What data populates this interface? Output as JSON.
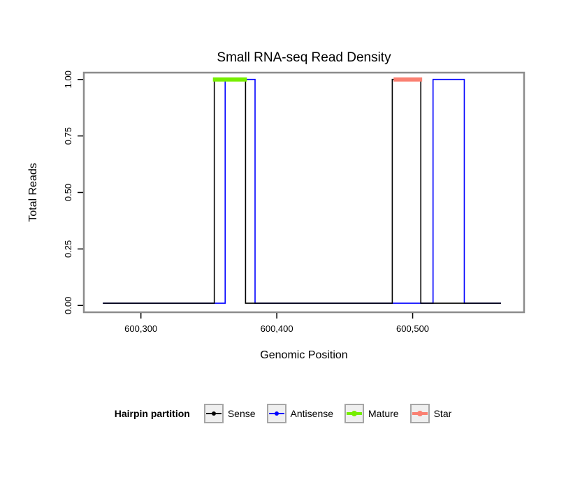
{
  "page": {
    "background": "#ffffff"
  },
  "chart_data": {
    "type": "line",
    "title": "Small RNA-seq Read Density",
    "xlabel": "Genomic Position",
    "ylabel": "Total Reads",
    "xlim": [
      600258,
      600582
    ],
    "ylim": [
      -0.03,
      1.03
    ],
    "grid": false,
    "panel_border_color": "#8c8c8c",
    "panel_background": "#ffffff",
    "xticks": [
      {
        "value": 600300,
        "label": "600,300"
      },
      {
        "value": 600400,
        "label": "600,400"
      },
      {
        "value": 600500,
        "label": "600,500"
      }
    ],
    "yticks": [
      {
        "value": 0.0,
        "label": "0.00"
      },
      {
        "value": 0.25,
        "label": "0.25"
      },
      {
        "value": 0.5,
        "label": "0.50"
      },
      {
        "value": 0.75,
        "label": "0.75"
      },
      {
        "value": 1.0,
        "label": "1.00"
      }
    ],
    "series": [
      {
        "name": "Antisense",
        "color": "#0000ff",
        "line_width": 1.6,
        "points": [
          [
            600272,
            0.01
          ],
          [
            600362,
            0.01
          ],
          [
            600362,
            1.0
          ],
          [
            600384,
            1.0
          ],
          [
            600384,
            0.01
          ],
          [
            600515,
            0.01
          ],
          [
            600515,
            1.0
          ],
          [
            600538,
            1.0
          ],
          [
            600538,
            0.01
          ],
          [
            600565,
            0.01
          ]
        ]
      },
      {
        "name": "Sense",
        "color": "#000000",
        "line_width": 1.6,
        "points": [
          [
            600272,
            0.01
          ],
          [
            600354,
            0.01
          ],
          [
            600354,
            1.0
          ],
          [
            600377,
            1.0
          ],
          [
            600377,
            0.01
          ],
          [
            600485,
            0.01
          ],
          [
            600485,
            1.0
          ],
          [
            600506,
            1.0
          ],
          [
            600506,
            0.01
          ],
          [
            600565,
            0.01
          ]
        ]
      },
      {
        "name": "Mature",
        "color": "#76ee00",
        "line_width": 6,
        "points": [
          [
            600353,
            1.0
          ],
          [
            600378,
            1.0
          ]
        ]
      },
      {
        "name": "Star",
        "color": "#fa8072",
        "line_width": 6,
        "points": [
          [
            600486,
            1.0
          ],
          [
            600507,
            1.0
          ]
        ]
      }
    ],
    "legend_title": "Hairpin partition",
    "legend_position": "bottom",
    "legend": [
      {
        "label": "Sense",
        "color": "#000000",
        "line_width": 2,
        "dot_radius": 3
      },
      {
        "label": "Antisense",
        "color": "#0000ff",
        "line_width": 2,
        "dot_radius": 3
      },
      {
        "label": "Mature",
        "color": "#76ee00",
        "line_width": 4,
        "dot_radius": 4
      },
      {
        "label": "Star",
        "color": "#fa8072",
        "line_width": 4,
        "dot_radius": 4
      }
    ]
  }
}
